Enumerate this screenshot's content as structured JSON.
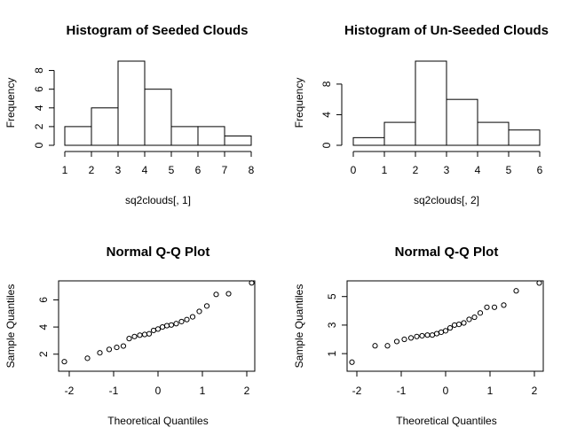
{
  "chart_data": [
    {
      "type": "histogram",
      "title": "Histogram of Seeded Clouds",
      "xlabel": "sq2clouds[, 1]",
      "ylabel": "Frequency",
      "bins": [
        [
          1,
          2
        ],
        [
          2,
          3
        ],
        [
          3,
          4
        ],
        [
          4,
          5
        ],
        [
          5,
          6
        ],
        [
          6,
          7
        ],
        [
          7,
          8
        ]
      ],
      "values": [
        2,
        4,
        9,
        6,
        2,
        2,
        1
      ],
      "xlim": [
        1,
        8
      ],
      "ylim": [
        0,
        9
      ],
      "xticks": [
        1,
        2,
        3,
        4,
        5,
        6,
        7,
        8
      ],
      "yticks": [
        0,
        2,
        4,
        6,
        8
      ]
    },
    {
      "type": "histogram",
      "title": "Histogram of Un-Seeded Clouds",
      "xlabel": "sq2clouds[, 2]",
      "ylabel": "Frequency",
      "bins": [
        [
          0,
          1
        ],
        [
          1,
          2
        ],
        [
          2,
          3
        ],
        [
          3,
          4
        ],
        [
          4,
          5
        ],
        [
          5,
          6
        ]
      ],
      "values": [
        1,
        3,
        11,
        6,
        3,
        2
      ],
      "xlim": [
        0,
        6
      ],
      "ylim": [
        0,
        11
      ],
      "xticks": [
        0,
        1,
        2,
        3,
        4,
        5,
        6
      ],
      "yticks": [
        0,
        4,
        8
      ]
    },
    {
      "type": "scatter",
      "title": "Normal Q-Q Plot",
      "xlabel": "Theoretical Quantiles",
      "ylabel": "Sample Quantiles",
      "x": [
        -2.11,
        -1.59,
        -1.31,
        -1.1,
        -0.93,
        -0.78,
        -0.65,
        -0.53,
        -0.41,
        -0.3,
        -0.2,
        -0.1,
        0.0,
        0.1,
        0.2,
        0.3,
        0.41,
        0.53,
        0.65,
        0.78,
        0.93,
        1.1,
        1.31,
        1.59,
        2.11
      ],
      "y": [
        1.45,
        1.7,
        2.1,
        2.35,
        2.5,
        2.6,
        3.15,
        3.3,
        3.4,
        3.45,
        3.5,
        3.75,
        3.85,
        4.0,
        4.1,
        4.15,
        4.25,
        4.4,
        4.55,
        4.75,
        5.15,
        5.55,
        6.4,
        6.45,
        7.25
      ],
      "xlim": [
        -2.2,
        2.2
      ],
      "ylim": [
        1.2,
        7.4
      ],
      "xticks": [
        -2,
        -1,
        0,
        1,
        2
      ],
      "yticks": [
        2,
        4,
        6
      ]
    },
    {
      "type": "scatter",
      "title": "Normal Q-Q Plot",
      "xlabel": "Theoretical Quantiles",
      "ylabel": "Sample Quantiles",
      "x": [
        -2.11,
        -1.59,
        -1.31,
        -1.1,
        -0.93,
        -0.78,
        -0.65,
        -0.53,
        -0.41,
        -0.3,
        -0.2,
        -0.1,
        0.0,
        0.1,
        0.2,
        0.3,
        0.41,
        0.53,
        0.65,
        0.78,
        0.93,
        1.1,
        1.31,
        1.59,
        2.11
      ],
      "y": [
        0.4,
        1.55,
        1.55,
        1.85,
        2.0,
        2.1,
        2.2,
        2.25,
        2.3,
        2.3,
        2.4,
        2.5,
        2.6,
        2.8,
        3.0,
        3.05,
        3.15,
        3.4,
        3.55,
        3.85,
        4.25,
        4.25,
        4.4,
        5.4,
        5.95
      ],
      "xlim": [
        -2.2,
        2.2
      ],
      "ylim": [
        0.2,
        6.1
      ],
      "xticks": [
        -2,
        -1,
        0,
        1,
        2
      ],
      "yticks": [
        1,
        3,
        5
      ]
    }
  ]
}
